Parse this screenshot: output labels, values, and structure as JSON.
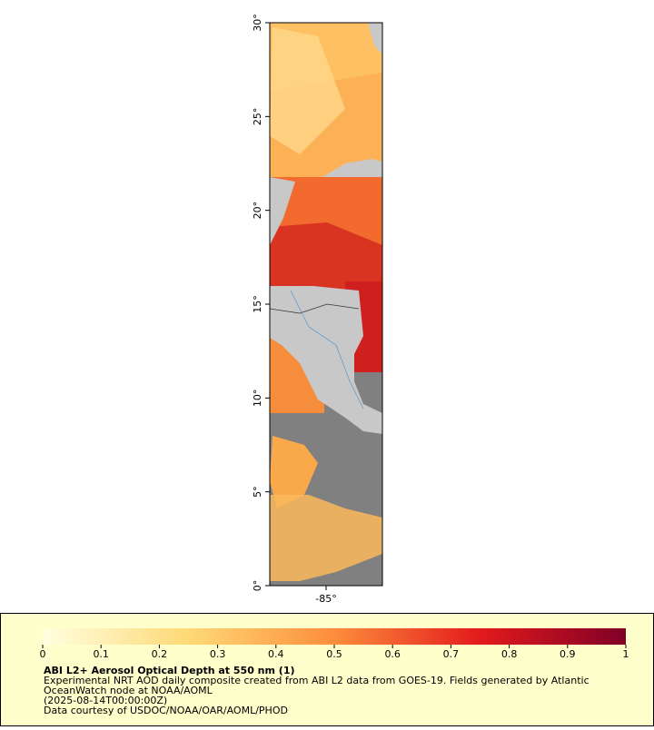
{
  "map": {
    "xlim": [
      -88,
      -82
    ],
    "ylim": [
      0,
      30
    ],
    "xticks": [
      {
        "value": -85,
        "label": "-85°"
      }
    ],
    "yticks": [
      {
        "value": 0,
        "label": "0°"
      },
      {
        "value": 5,
        "label": "5°"
      },
      {
        "value": 10,
        "label": "10°"
      },
      {
        "value": 15,
        "label": "15°"
      },
      {
        "value": 20,
        "label": "20°"
      },
      {
        "value": 25,
        "label": "25°"
      },
      {
        "value": 30,
        "label": "30°"
      }
    ]
  },
  "colorbar": {
    "range": [
      0,
      1
    ],
    "ticks": [
      0,
      0.1,
      0.2,
      0.3,
      0.4,
      0.5,
      0.6,
      0.7,
      0.8,
      0.9,
      1
    ],
    "colors": [
      "#ffffe0",
      "#fed976",
      "#fd8d3c",
      "#e31a1c",
      "#800026"
    ]
  },
  "legend": {
    "title": "ABI L2+ Aerosol Optical Depth at 550 nm (1)",
    "lines": [
      "Experimental NRT AOD daily composite created from ABI L2 data from GOES-19. Fields generated by Atlantic",
      "OceanWatch node at NOAA/AOML",
      "(2025-08-14T00:00:00Z)",
      "Data courtesy of USDOC/NOAA/OAR/AOML/PHOD"
    ]
  }
}
